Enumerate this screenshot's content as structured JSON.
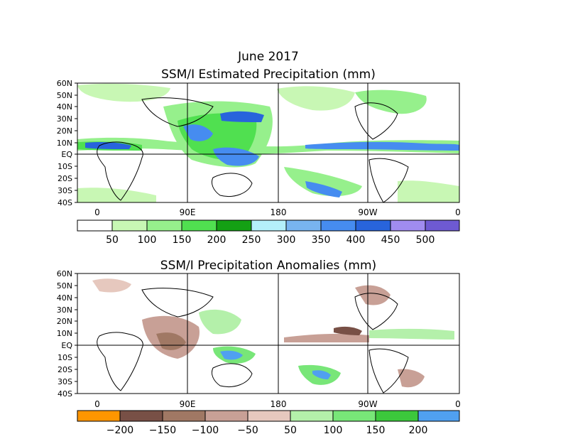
{
  "figure": {
    "title": "June 2017",
    "colors": {
      "land_outline": "#000000",
      "background": "#ffffff"
    }
  },
  "panels": [
    {
      "id": "estimated",
      "title": "SSM/I Estimated Precipitation (mm)",
      "lat_labels": [
        "60N",
        "50N",
        "40N",
        "30N",
        "20N",
        "10N",
        "EQ",
        "10S",
        "20S",
        "30S",
        "40S"
      ],
      "lon_labels": [
        "0",
        "90E",
        "180",
        "90W",
        "0"
      ],
      "colorbar": {
        "labels": [
          "50",
          "100",
          "150",
          "200",
          "250",
          "300",
          "350",
          "400",
          "450",
          "500"
        ],
        "colors": [
          "#ffffff",
          "#c8f7b4",
          "#96f08c",
          "#50e050",
          "#14a014",
          "#b4f0fa",
          "#78b4f0",
          "#468cf0",
          "#2864dc",
          "#a08cf0",
          "#6e5ad2"
        ]
      }
    },
    {
      "id": "anomalies",
      "title": "SSM/I Precipitation Anomalies (mm)",
      "lat_labels": [
        "60N",
        "50N",
        "40N",
        "30N",
        "20N",
        "10N",
        "EQ",
        "10S",
        "20S",
        "30S",
        "40S"
      ],
      "lon_labels": [
        "0",
        "90E",
        "180",
        "90W",
        "0"
      ],
      "colorbar": {
        "labels": [
          "−200",
          "−150",
          "−100",
          "−50",
          "50",
          "100",
          "150",
          "200"
        ],
        "colors": [
          "#ff9600",
          "#785046",
          "#a07864",
          "#c8a096",
          "#e6c8be",
          "#ffffff",
          "#b4f0aa",
          "#78e678",
          "#3cc83c",
          "#50a0f0"
        ]
      }
    }
  ]
}
